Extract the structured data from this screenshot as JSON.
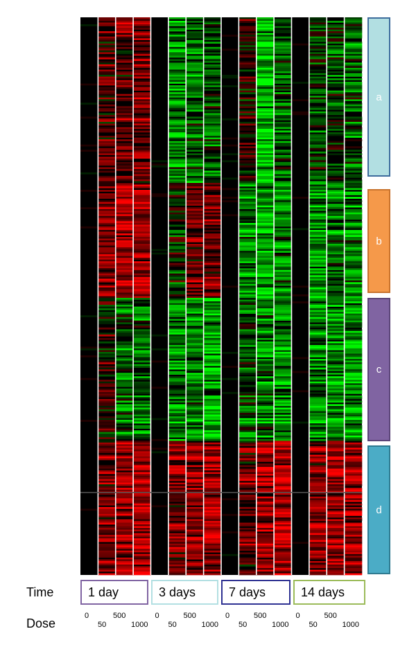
{
  "chart_data": {
    "type": "heatmap",
    "colors": {
      "up": "#ff0000",
      "neutral": "#000000",
      "down": "#00ff00"
    },
    "time_label": "Time",
    "dose_label": "Dose",
    "time_points": [
      "1 day",
      "3 days",
      "7 days",
      "14 days"
    ],
    "doses": [
      "0",
      "50",
      "500",
      "1000"
    ],
    "clusters": [
      {
        "label": "a",
        "fill": "#b2dfe2",
        "border": "#3d6c9c"
      },
      {
        "label": "b",
        "fill": "#f5994a",
        "border": "#c8722c"
      },
      {
        "label": "c",
        "fill": "#8064a2",
        "border": "#5b4478"
      },
      {
        "label": "d",
        "fill": "#4bacc6",
        "border": "#2e7a90"
      }
    ],
    "cluster_profiles": {
      "columns": [
        "1d-0",
        "1d-50",
        "1d-500",
        "1d-1000",
        "3d-0",
        "3d-50",
        "3d-500",
        "3d-1000",
        "7d-0",
        "7d-50",
        "7d-500",
        "7d-1000",
        "14d-0",
        "14d-50",
        "14d-500",
        "14d-1000"
      ],
      "a": [
        0.05,
        0.3,
        0.35,
        0.4,
        0.0,
        -0.45,
        -0.35,
        -0.3,
        0.0,
        0.15,
        -0.75,
        -0.3,
        0.0,
        -0.2,
        -0.15,
        -0.3
      ],
      "b": [
        0.05,
        0.45,
        0.6,
        0.6,
        0.0,
        -0.1,
        0.35,
        0.45,
        0.0,
        -0.5,
        -0.55,
        -0.5,
        0.0,
        -0.5,
        -0.4,
        -0.45
      ],
      "c": [
        0.05,
        0.1,
        -0.3,
        -0.35,
        0.0,
        -0.45,
        -0.45,
        -0.6,
        0.0,
        -0.25,
        -0.4,
        -0.45,
        0.0,
        -0.45,
        -0.5,
        -0.55
      ],
      "d": [
        0.05,
        0.4,
        0.55,
        0.65,
        0.0,
        0.45,
        0.55,
        0.6,
        0.0,
        0.35,
        0.6,
        0.65,
        0.0,
        0.5,
        0.6,
        0.6
      ]
    }
  }
}
